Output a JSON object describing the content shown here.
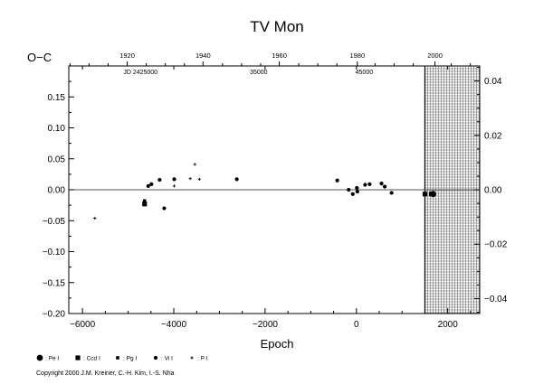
{
  "chart_data": {
    "type": "scatter",
    "title": "TV Mon",
    "xlabel": "Epoch",
    "ylabel": "O−C",
    "xlim": [
      -6300,
      2700
    ],
    "ylim": [
      -0.2,
      0.2
    ],
    "xticks": [
      -6000,
      -4000,
      -2000,
      0,
      2000
    ],
    "xtick_labels": [
      "−6000",
      "−4000",
      "−2000",
      "0",
      "2000"
    ],
    "yticks": [
      -0.2,
      -0.15,
      -0.1,
      -0.05,
      0.0,
      0.05,
      0.1,
      0.15
    ],
    "ytick_labels": [
      "−0.20",
      "−0.15",
      "−0.10",
      "−0.05",
      "0.00",
      "0.05",
      "0.10",
      "0.15"
    ],
    "right_yticks": [
      -0.04,
      -0.02,
      0.0,
      0.02,
      0.04
    ],
    "right_ytick_labels": [
      "−0.04",
      "−0.02",
      "0.00",
      "0.02",
      "0.04"
    ],
    "right_ylim": [
      -0.0455,
      0.0455
    ],
    "top_year_ticks": [
      {
        "label": "1920",
        "epoch": -5020
      },
      {
        "label": "1940",
        "epoch": -3360
      },
      {
        "label": "1960",
        "epoch": -1690
      },
      {
        "label": "1980",
        "epoch": 20
      },
      {
        "label": "2000",
        "epoch": 1720
      }
    ],
    "jd_labels": [
      {
        "label": "JD 2425000",
        "epoch": -4730
      },
      {
        "label": "35000",
        "epoch": -2140
      },
      {
        "label": "45000",
        "epoch": 170
      }
    ],
    "zero_line": 0.0,
    "grid_region": {
      "x_from": 1500,
      "x_to": 2700
    },
    "series": [
      {
        "name": "Pe",
        "marker": "circle-large",
        "points": [
          [
            1680,
            -0.007
          ]
        ]
      },
      {
        "name": "Ccd",
        "marker": "square",
        "points": [
          [
            -4640,
            -0.023
          ],
          [
            1500,
            -0.007
          ],
          [
            1640,
            -0.007
          ]
        ]
      },
      {
        "name": "Pg",
        "marker": "square-small",
        "points": [
          [
            -4640,
            -0.018
          ]
        ]
      },
      {
        "name": "Vi",
        "marker": "dot",
        "points": [
          [
            -4560,
            0.006
          ],
          [
            -4490,
            0.009
          ],
          [
            -4310,
            0.016
          ],
          [
            -4210,
            -0.03
          ],
          [
            -3990,
            0.017
          ],
          [
            -2620,
            0.017
          ],
          [
            -420,
            0.015
          ],
          [
            -170,
            0.0
          ],
          [
            -80,
            -0.007
          ],
          [
            10,
            0.003
          ],
          [
            20,
            -0.003
          ],
          [
            190,
            0.008
          ],
          [
            290,
            0.009
          ],
          [
            550,
            0.01
          ],
          [
            620,
            0.005
          ],
          [
            770,
            -0.005
          ]
        ]
      },
      {
        "name": "P",
        "marker": "plus",
        "points": [
          [
            -5730,
            -0.046
          ],
          [
            -3990,
            0.006
          ],
          [
            -3640,
            0.018
          ],
          [
            -3540,
            0.041
          ],
          [
            -3440,
            0.017
          ]
        ]
      }
    ]
  },
  "legend": [
    {
      "label": ": Pe I",
      "marker": "circle-large"
    },
    {
      "label": ": Ccd I",
      "marker": "square"
    },
    {
      "label": ": Pg I",
      "marker": "square-small"
    },
    {
      "label": ": Vi I",
      "marker": "dot"
    },
    {
      "label": ": P I",
      "marker": "plus"
    }
  ],
  "copyright": "Copyright 2000 J.M. Kreiner, C.-H. Kim, I.-S. Nha"
}
